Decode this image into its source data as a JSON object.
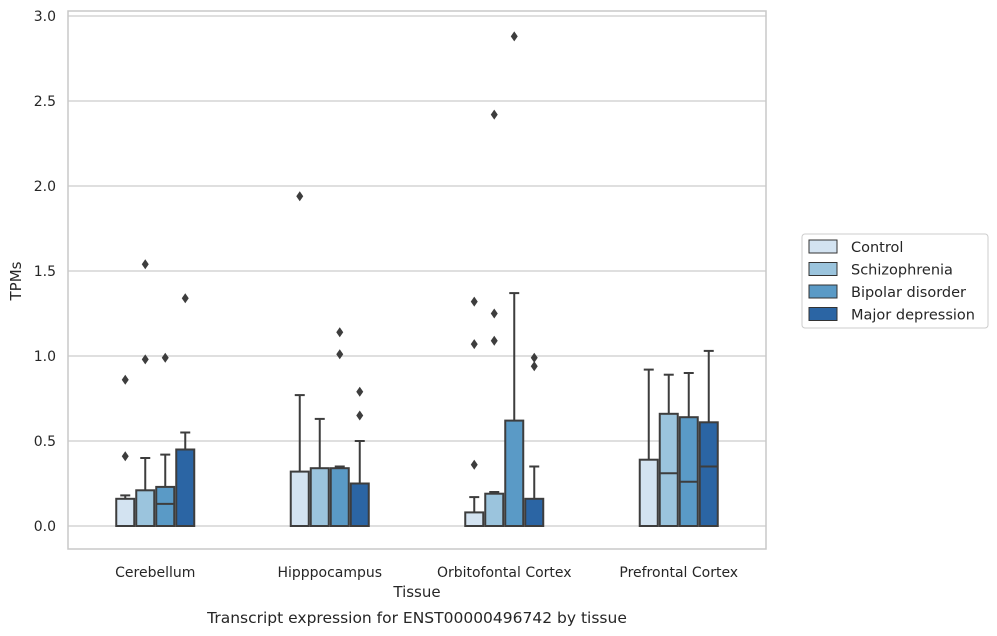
{
  "caption": "Transcript expression for ENST00000496742 by tissue",
  "chart_data": {
    "type": "box",
    "xlabel": "Tissue",
    "ylabel": "TPMs",
    "ylim": [
      -0.14,
      3.03
    ],
    "yticks": [
      "0.0",
      "0.5",
      "1.0",
      "1.5",
      "2.0",
      "2.5",
      "3.0"
    ],
    "grid": "horizontal",
    "legend_position": "right",
    "categories": [
      "Cerebellum",
      "Hipppocampus",
      "Orbitofontal Cortex",
      "Prefrontal Cortex"
    ],
    "series": [
      {
        "name": "Control",
        "color": "#d3e3f1",
        "boxes": [
          {
            "whislo": 0,
            "q1": 0,
            "med": 0,
            "q3": 0.16,
            "whishi": 0.18,
            "fliers": [
              0.41,
              0.86
            ]
          },
          {
            "whislo": 0,
            "q1": 0,
            "med": 0,
            "q3": 0.32,
            "whishi": 0.77,
            "fliers": [
              1.94
            ]
          },
          {
            "whislo": 0,
            "q1": 0,
            "med": 0,
            "q3": 0.08,
            "whishi": 0.17,
            "fliers": [
              0.36,
              1.07,
              1.32
            ]
          },
          {
            "whislo": 0,
            "q1": 0,
            "med": 0,
            "q3": 0.39,
            "whishi": 0.92,
            "fliers": []
          }
        ]
      },
      {
        "name": "Schizophrenia",
        "color": "#9bc4dd",
        "boxes": [
          {
            "whislo": 0,
            "q1": 0,
            "med": 0,
            "q3": 0.21,
            "whishi": 0.4,
            "fliers": [
              0.98,
              1.54
            ]
          },
          {
            "whislo": 0,
            "q1": 0,
            "med": 0,
            "q3": 0.34,
            "whishi": 0.63,
            "fliers": []
          },
          {
            "whislo": 0,
            "q1": 0,
            "med": 0,
            "q3": 0.19,
            "whishi": 0.2,
            "fliers": [
              1.09,
              1.25,
              2.42
            ]
          },
          {
            "whislo": 0,
            "q1": 0,
            "med": 0.31,
            "q3": 0.66,
            "whishi": 0.89,
            "fliers": []
          }
        ]
      },
      {
        "name": "Bipolar disorder",
        "color": "#5a9ac6",
        "boxes": [
          {
            "whislo": 0,
            "q1": 0,
            "med": 0.13,
            "q3": 0.23,
            "whishi": 0.42,
            "fliers": [
              0.99
            ]
          },
          {
            "whislo": 0,
            "q1": 0,
            "med": 0,
            "q3": 0.34,
            "whishi": 0.35,
            "fliers": [
              1.01,
              1.14
            ]
          },
          {
            "whislo": 0,
            "q1": 0,
            "med": 0,
            "q3": 0.62,
            "whishi": 1.37,
            "fliers": [
              2.88
            ]
          },
          {
            "whislo": 0,
            "q1": 0,
            "med": 0.26,
            "q3": 0.64,
            "whishi": 0.9,
            "fliers": []
          }
        ]
      },
      {
        "name": "Major depression",
        "color": "#2b65a4",
        "boxes": [
          {
            "whislo": 0,
            "q1": 0,
            "med": 0,
            "q3": 0.45,
            "whishi": 0.55,
            "fliers": [
              1.34
            ]
          },
          {
            "whislo": 0,
            "q1": 0,
            "med": 0,
            "q3": 0.25,
            "whishi": 0.5,
            "fliers": [
              0.65,
              0.79
            ]
          },
          {
            "whislo": 0,
            "q1": 0,
            "med": 0,
            "q3": 0.16,
            "whishi": 0.35,
            "fliers": [
              0.94,
              0.99
            ]
          },
          {
            "whislo": 0,
            "q1": 0,
            "med": 0.35,
            "q3": 0.61,
            "whishi": 1.03,
            "fliers": []
          }
        ]
      }
    ],
    "colors": {
      "edge": "#3d3d3d",
      "grid": "#cccccc",
      "frame": "#c8c8c8"
    }
  }
}
